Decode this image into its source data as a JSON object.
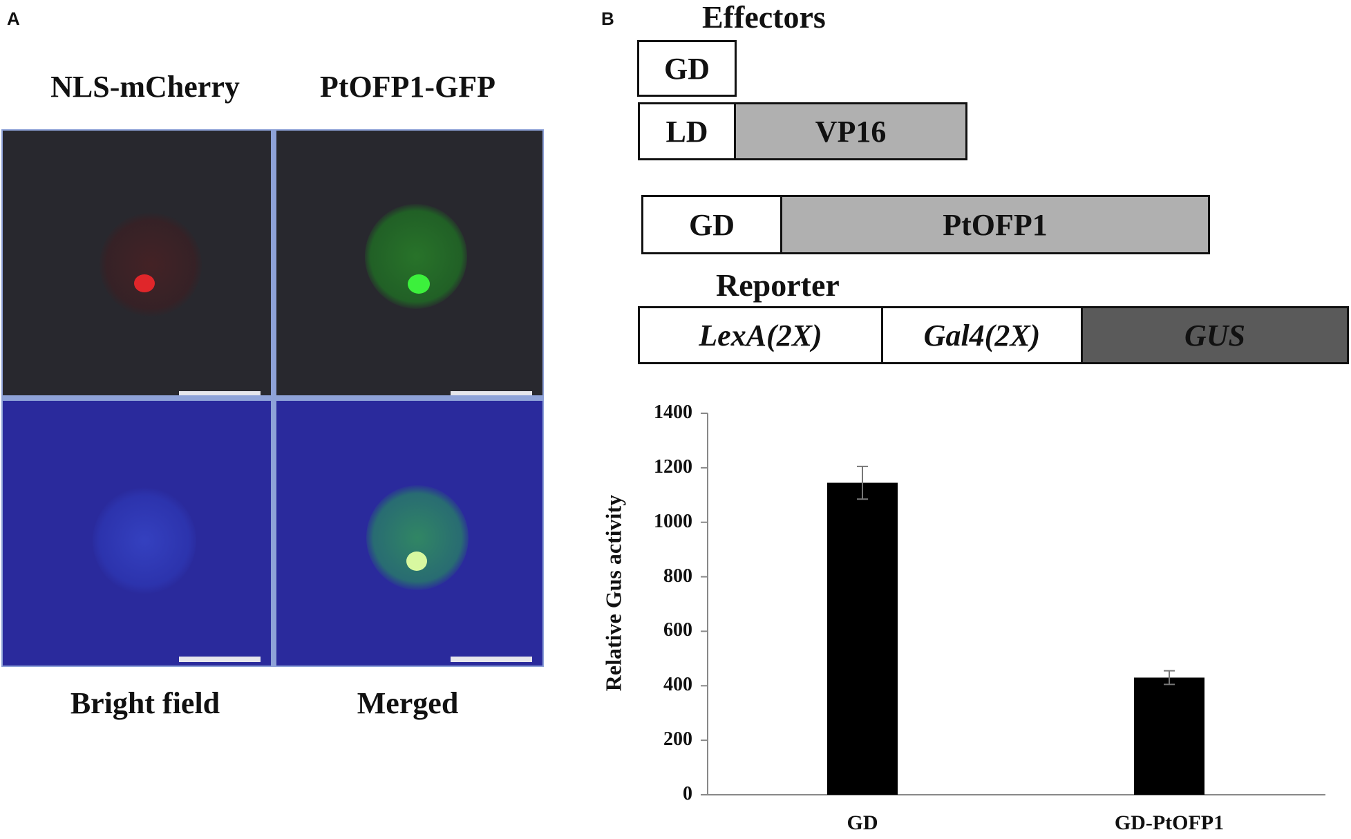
{
  "panel_a": {
    "letter": "A",
    "labels": {
      "top_left": "NLS-mCherry",
      "top_right": "PtOFP1-GFP",
      "bottom_left": "Bright field",
      "bottom_right": "Merged"
    }
  },
  "panel_b": {
    "letter": "B",
    "effectors_title": "Effectors",
    "reporter_title": "Reporter",
    "constructs": {
      "gd_only": "GD",
      "ld": "LD",
      "vp16": "VP16",
      "gd_fusion": "GD",
      "ptofp1": "PtOFP1"
    },
    "reporter_parts": {
      "lexa": "LexA(2X)",
      "gal4": "Gal4(2X)",
      "gus": "GUS"
    }
  },
  "chart_data": {
    "type": "bar",
    "categories": [
      "GD",
      "GD-PtOFP1"
    ],
    "values": [
      1145,
      430
    ],
    "errors": [
      60,
      25
    ],
    "ylabel": "Relative Gus activity",
    "ylim": [
      0,
      1400
    ],
    "yticks": [
      "0",
      "200",
      "400",
      "600",
      "800",
      "1000",
      "1200",
      "1400"
    ],
    "bar_color": "#000000",
    "grid": false
  }
}
